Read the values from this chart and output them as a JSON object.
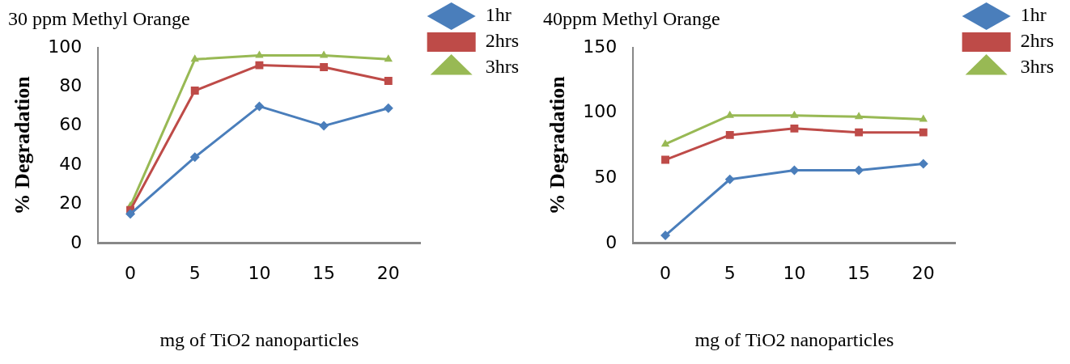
{
  "chart_data": [
    {
      "type": "line",
      "title": "30 ppm Methyl Orange",
      "xlabel": "mg of TiO2 nanoparticles",
      "ylabel": "% Degradation",
      "categories": [
        "0",
        "5",
        "10",
        "15",
        "20"
      ],
      "ylim": [
        0,
        100
      ],
      "yticks": [
        0,
        20,
        40,
        60,
        80,
        100
      ],
      "grid": false,
      "legend": "top right",
      "series": [
        {
          "name": "1hr",
          "color": "#4a7ebb",
          "marker": "diamond",
          "values": [
            15,
            44,
            70,
            60,
            69
          ]
        },
        {
          "name": "2hrs",
          "color": "#be4b48",
          "marker": "square",
          "values": [
            17,
            78,
            91,
            90,
            83
          ]
        },
        {
          "name": "3hrs",
          "color": "#98b954",
          "marker": "triangle",
          "values": [
            19,
            94,
            96,
            96,
            94
          ]
        }
      ]
    },
    {
      "type": "line",
      "title": "40ppm Methyl Orange",
      "xlabel": "mg of TiO2 nanoparticles",
      "ylabel": "% Degradation",
      "categories": [
        "0",
        "5",
        "10",
        "15",
        "20"
      ],
      "ylim": [
        0,
        150
      ],
      "yticks": [
        0,
        50,
        100,
        150
      ],
      "grid": false,
      "legend": "top right",
      "series": [
        {
          "name": "1hr",
          "color": "#4a7ebb",
          "marker": "diamond",
          "values": [
            6,
            49,
            56,
            56,
            61
          ]
        },
        {
          "name": "2hrs",
          "color": "#be4b48",
          "marker": "square",
          "values": [
            64,
            83,
            88,
            85,
            85
          ]
        },
        {
          "name": "3hrs",
          "color": "#98b954",
          "marker": "triangle",
          "values": [
            76,
            98,
            98,
            97,
            95
          ]
        }
      ]
    }
  ]
}
